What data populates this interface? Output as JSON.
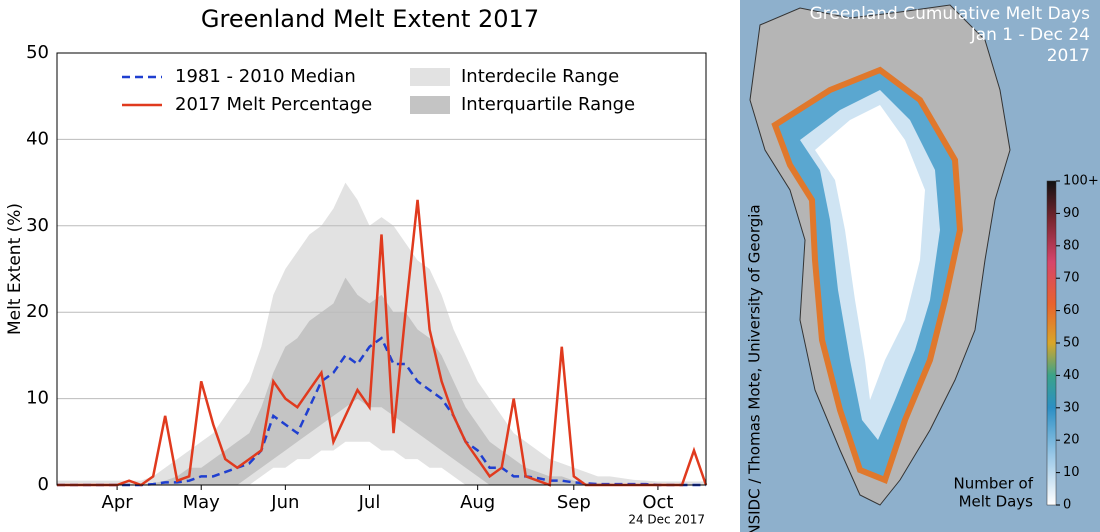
{
  "chart_data": {
    "type": "line",
    "title": "Greenland Melt Extent 2017",
    "ylabel": "Melt Extent (%)",
    "note": "24 Dec 2017",
    "categories": [
      null,
      null,
      null,
      null,
      null,
      "Apr",
      null,
      null,
      null,
      null,
      null,
      null,
      "May",
      null,
      null,
      null,
      null,
      null,
      null,
      "Jun",
      null,
      null,
      null,
      null,
      null,
      null,
      "Jul",
      null,
      null,
      null,
      null,
      null,
      null,
      null,
      null,
      "Aug",
      null,
      null,
      null,
      null,
      null,
      null,
      null,
      "Sep",
      null,
      null,
      null,
      null,
      null,
      null,
      "Oct",
      null,
      null,
      null,
      null
    ],
    "ylim": [
      0,
      50
    ],
    "yticks": [
      0,
      10,
      20,
      30,
      40,
      50
    ],
    "grid": true,
    "series": [
      {
        "name": "1981 - 2010 Median",
        "color": "#1f3fd0",
        "style": "dashed",
        "values": [
          0,
          0,
          0,
          0,
          0,
          0,
          0,
          0,
          0.1,
          0.3,
          0.3,
          0.5,
          1,
          1,
          1.5,
          2,
          2.5,
          4,
          8,
          7,
          6,
          9,
          12,
          13,
          15,
          14,
          16,
          17,
          14,
          14,
          12,
          11,
          10,
          8,
          5,
          4,
          2,
          2,
          1,
          1,
          0.8,
          0.5,
          0.5,
          0.3,
          0.2,
          0.1,
          0.1,
          0.1,
          0.1,
          0.1,
          0,
          0,
          0,
          0,
          0
        ]
      },
      {
        "name": "2017 Melt Percentage",
        "color": "#e03a1e",
        "style": "solid",
        "values": [
          0,
          0,
          0,
          0,
          0,
          0,
          0.5,
          0,
          1,
          8,
          0.5,
          1,
          12,
          7,
          3,
          2,
          3,
          4,
          12,
          10,
          9,
          11,
          13,
          5,
          8,
          11,
          9,
          29,
          6,
          20,
          33,
          18,
          12,
          8,
          5,
          3,
          1,
          2,
          10,
          1,
          0.5,
          0,
          16,
          1,
          0,
          0,
          0,
          0,
          0,
          0,
          0,
          0,
          0,
          4,
          0
        ]
      }
    ],
    "bands": [
      {
        "name": "Interdecile Range",
        "color": "#e2e2e2",
        "lower": [
          0,
          0,
          0,
          0,
          0,
          0,
          0,
          0,
          0,
          0,
          0,
          0,
          0,
          0,
          0,
          0,
          0,
          1,
          2,
          2,
          3,
          3,
          4,
          4,
          5,
          5,
          5,
          4,
          4,
          3,
          3,
          2,
          2,
          1,
          0,
          0,
          0,
          0,
          0,
          0,
          0,
          0,
          0,
          0,
          0,
          0,
          0,
          0,
          0,
          0,
          0,
          0,
          0,
          0,
          0
        ],
        "upper": [
          0.5,
          0.5,
          0.5,
          0.5,
          0.5,
          0.5,
          0.5,
          0.5,
          1,
          2,
          3,
          4,
          5,
          6,
          8,
          10,
          12,
          16,
          22,
          25,
          27,
          29,
          30,
          32,
          35,
          33,
          30,
          31,
          30,
          28,
          26,
          25,
          22,
          18,
          15,
          12,
          10,
          8,
          6,
          5,
          4,
          3,
          2.5,
          2,
          1.5,
          1,
          1,
          0.8,
          0.6,
          0.5,
          0.4,
          0.4,
          0.4,
          0.4,
          0.4
        ]
      },
      {
        "name": "Interquartile Range",
        "color": "#c4c4c4",
        "lower": [
          0,
          0,
          0,
          0,
          0,
          0,
          0,
          0,
          0,
          0,
          0,
          0,
          0,
          0,
          0,
          0,
          1,
          2,
          3,
          4,
          5,
          6,
          7,
          8,
          9,
          10,
          9,
          9,
          8,
          7,
          6,
          5,
          4,
          3,
          2,
          1,
          0,
          0,
          0,
          0,
          0,
          0,
          0,
          0,
          0,
          0,
          0,
          0,
          0,
          0,
          0,
          0,
          0,
          0,
          0
        ],
        "upper": [
          0,
          0,
          0,
          0,
          0,
          0,
          0,
          0,
          0.2,
          0.5,
          1,
          2,
          2,
          3,
          4,
          5,
          6,
          9,
          13,
          16,
          17,
          19,
          20,
          21,
          24,
          22,
          21,
          22,
          20,
          20,
          18,
          17,
          15,
          12,
          9,
          7,
          5,
          4,
          3,
          2,
          1.5,
          1,
          1,
          0.5,
          0.2,
          0.2,
          0.2,
          0,
          0,
          0,
          0,
          0,
          0,
          0,
          0
        ]
      }
    ]
  },
  "map": {
    "title": [
      "Greenland Cumulative Melt Days",
      "Jan 1 - Dec 24",
      "2017"
    ],
    "credit": "NSIDC / Thomas Mote, University of Georgia",
    "colorbar_label": [
      "Number of",
      "Melt Days"
    ],
    "colorbar_lim": [
      0,
      100
    ],
    "colorbar_ticks": [
      0,
      10,
      20,
      30,
      40,
      50,
      60,
      70,
      80,
      90,
      {
        "value": 100,
        "label": "100+"
      }
    ]
  }
}
